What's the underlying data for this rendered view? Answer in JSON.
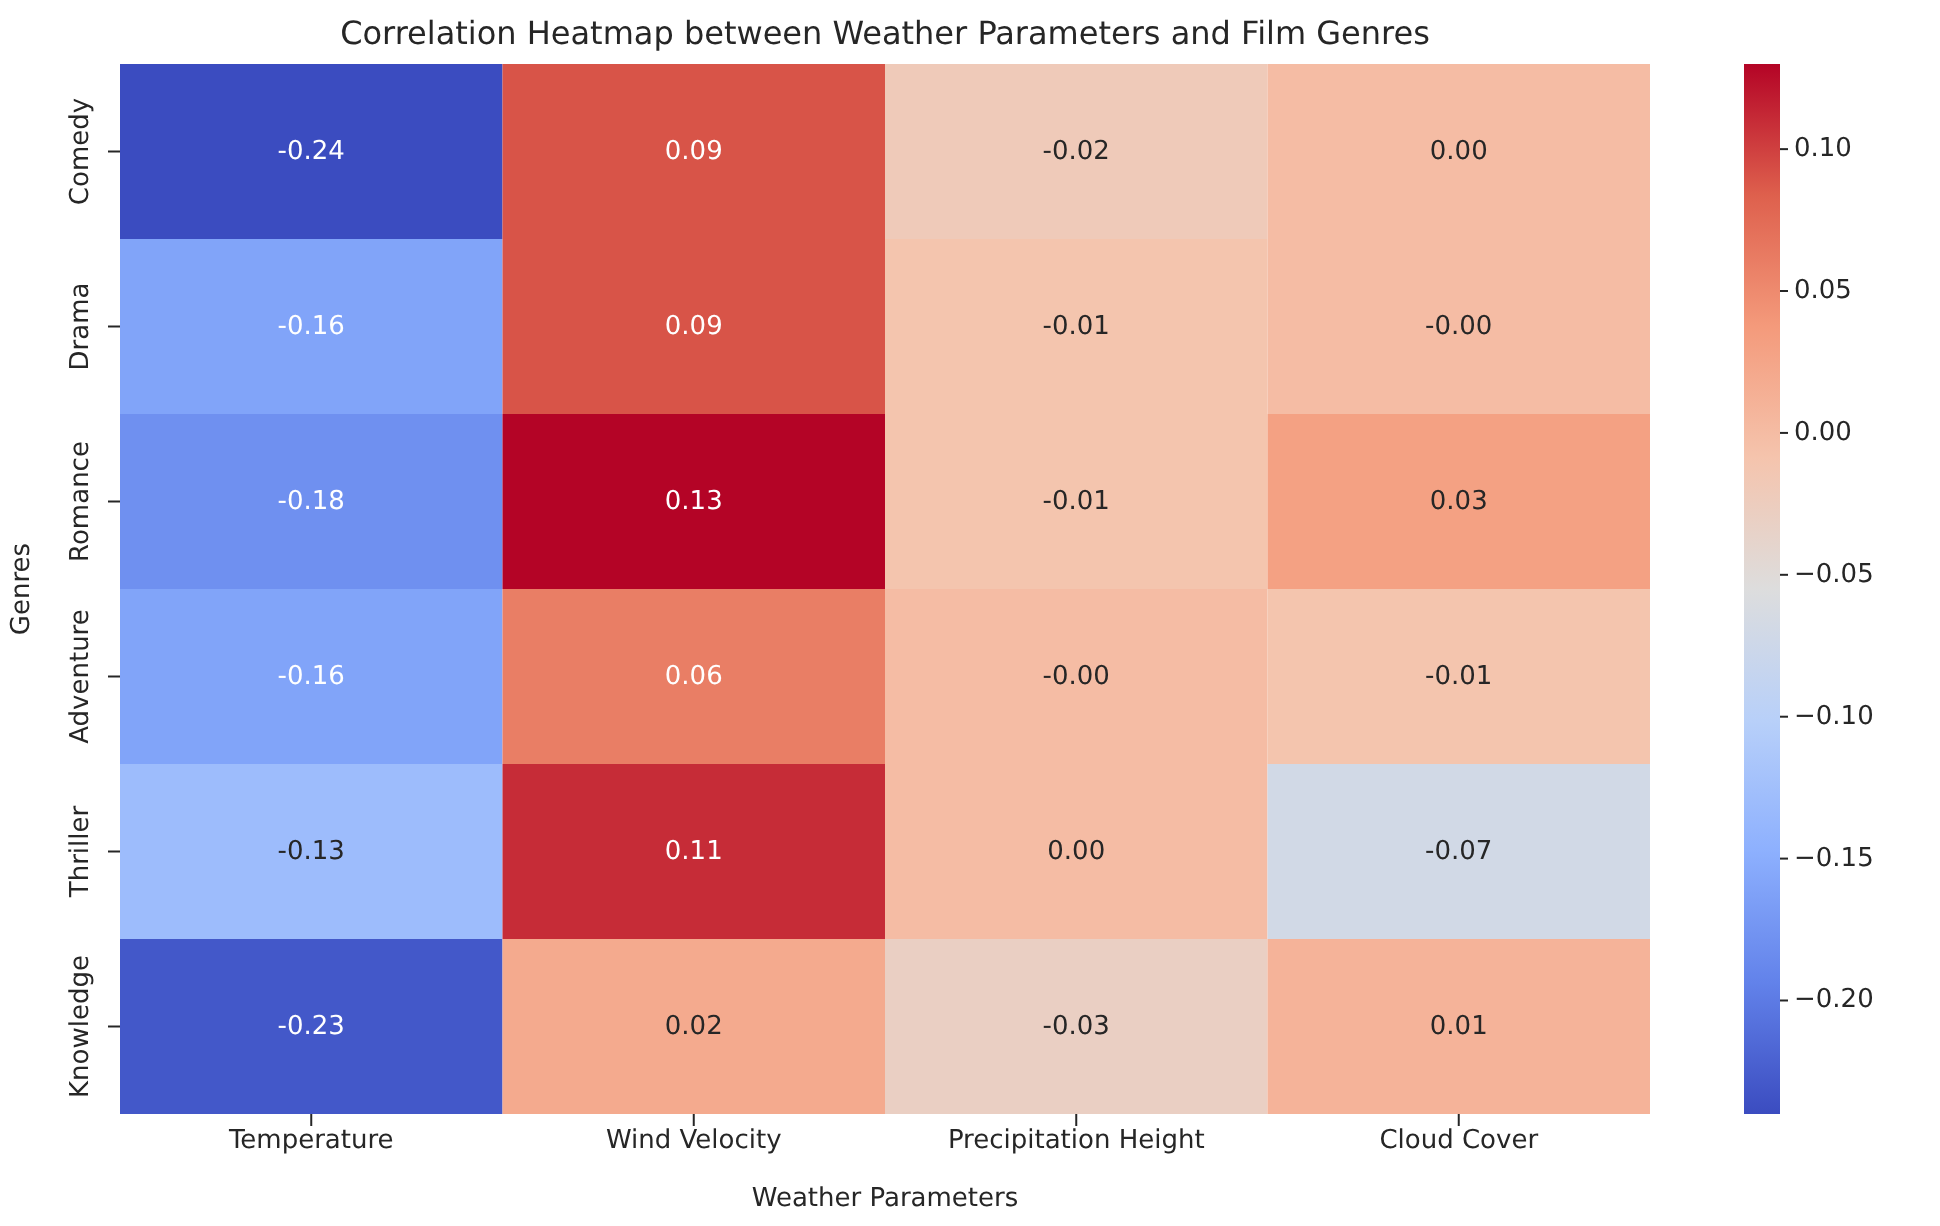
{
  "chart_data": {
    "type": "heatmap",
    "title": "Correlation Heatmap between Weather Parameters and Film Genres",
    "xlabel": "Weather Parameters",
    "ylabel": "Genres",
    "categories": [
      "Temperature",
      "Wind Velocity",
      "Precipitation Height",
      "Cloud Cover"
    ],
    "y_categories": [
      "Comedy",
      "Drama",
      "Romance",
      "Adventure",
      "Thriller",
      "Knowledge"
    ],
    "cells": [
      [
        -0.24,
        0.09,
        -0.02,
        0.0
      ],
      [
        -0.16,
        0.09,
        -0.01,
        0.0
      ],
      [
        -0.18,
        0.13,
        -0.01,
        0.03
      ],
      [
        -0.16,
        0.06,
        0.0,
        -0.01
      ],
      [
        -0.13,
        0.11,
        0.0,
        -0.07
      ],
      [
        -0.23,
        0.02,
        -0.03,
        0.01
      ]
    ],
    "cell_labels": [
      [
        "-0.24",
        "0.09",
        "-0.02",
        "0.00"
      ],
      [
        "-0.16",
        "0.09",
        "-0.01",
        "-0.00"
      ],
      [
        "-0.18",
        "0.13",
        "-0.01",
        "0.03"
      ],
      [
        "-0.16",
        "0.06",
        "-0.00",
        "-0.01"
      ],
      [
        "-0.13",
        "0.11",
        "0.00",
        "-0.07"
      ],
      [
        "-0.23",
        "0.02",
        "-0.03",
        "0.01"
      ]
    ],
    "clim": [
      -0.24,
      0.13
    ],
    "cticks": [
      {
        "value": 0.1,
        "label": "0.10"
      },
      {
        "value": 0.05,
        "label": "0.05"
      },
      {
        "value": 0,
        "label": "0.00"
      },
      {
        "value": -0.05,
        "label": "−0.05"
      },
      {
        "value": -0.1,
        "label": "−0.10"
      },
      {
        "value": -0.15,
        "label": "−0.15"
      },
      {
        "value": -0.2,
        "label": "−0.20"
      }
    ]
  }
}
